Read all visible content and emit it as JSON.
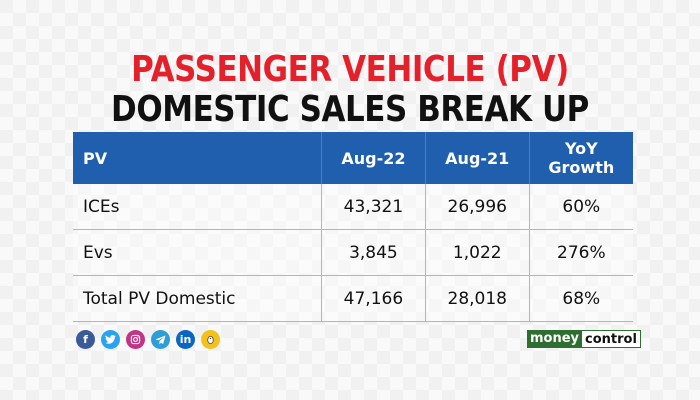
{
  "header": {
    "title_line1": "PASSENGER VEHICLE (PV)",
    "title_line2": "DOMESTIC SALES BREAK UP"
  },
  "table": {
    "columns": [
      "PV",
      "Aug-22",
      "Aug-21",
      "YoY Growth"
    ],
    "rows": [
      [
        "ICEs",
        "43,321",
        "26,996",
        "60%"
      ],
      [
        "Evs",
        "3,845",
        "1,022",
        "276%"
      ],
      [
        "Total PV Domestic",
        "47,166",
        "28,018",
        "68%"
      ]
    ]
  },
  "social": [
    "facebook-icon",
    "twitter-icon",
    "instagram-icon",
    "telegram-icon",
    "linkedin-icon",
    "koo-icon"
  ],
  "brand": {
    "part1": "money",
    "part2": "control"
  },
  "colors": {
    "title_red": "#e4212b",
    "header_blue": "#1f5fae",
    "brand_green": "#2f6e31"
  }
}
